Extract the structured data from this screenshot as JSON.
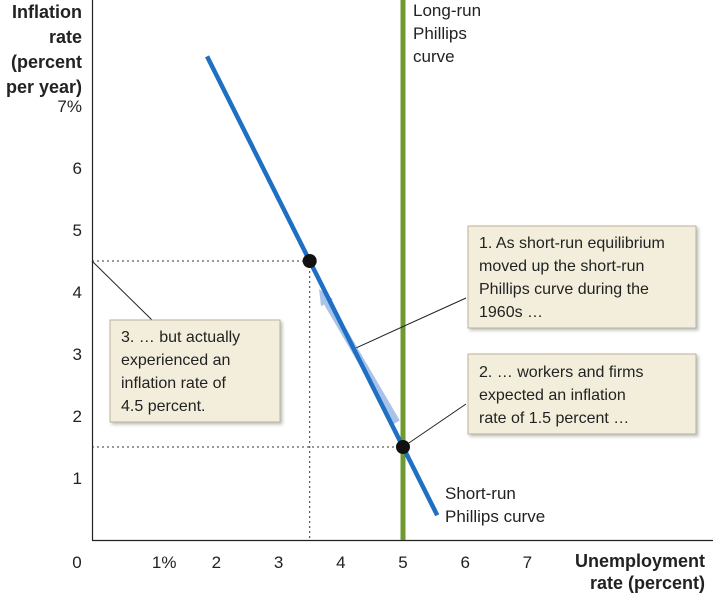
{
  "chart_data": {
    "type": "line",
    "ylabel": [
      "Inflation",
      "rate",
      "(percent",
      "per year)"
    ],
    "xlabel": [
      "Unemployment",
      "rate (percent)"
    ],
    "xlim": [
      0,
      7
    ],
    "ylim": [
      0,
      7
    ],
    "x_ticks": [
      {
        "value": 0,
        "label": "0"
      },
      {
        "value": 1,
        "label": "1%"
      },
      {
        "value": 2,
        "label": "2"
      },
      {
        "value": 3,
        "label": "3"
      },
      {
        "value": 4,
        "label": "4"
      },
      {
        "value": 5,
        "label": "5"
      },
      {
        "value": 6,
        "label": "6"
      },
      {
        "value": 7,
        "label": "7"
      }
    ],
    "y_ticks": [
      {
        "value": 1,
        "label": "1"
      },
      {
        "value": 2,
        "label": "2"
      },
      {
        "value": 3,
        "label": "3"
      },
      {
        "value": 4,
        "label": "4"
      },
      {
        "value": 5,
        "label": "5"
      },
      {
        "value": 6,
        "label": "6"
      },
      {
        "value": 7,
        "label": "7%"
      }
    ],
    "grid": false,
    "series": [
      {
        "name": "Short-run Phillips curve",
        "label_lines": [
          "Short-run",
          "Phillips curve"
        ],
        "color": "#1f6fc2",
        "points": [
          [
            1.85,
            7.8
          ],
          [
            5.55,
            0.4
          ]
        ]
      },
      {
        "name": "Long-run Phillips curve",
        "label_lines": [
          "Long-run",
          "Phillips",
          "curve"
        ],
        "color": "#6f9a2f",
        "x": 5
      }
    ],
    "points": [
      {
        "x": 3.5,
        "y": 4.5
      },
      {
        "x": 5,
        "y": 1.5
      }
    ],
    "movement_arrow": {
      "from": [
        4.9,
        1.9
      ],
      "to": [
        3.65,
        4.05
      ],
      "color": "#a9c3e8"
    },
    "annotations": [
      {
        "id": "note1",
        "lines": [
          "1. As short-run equilibrium",
          "moved up the short-run",
          "Phillips curve during the",
          "1960s …"
        ],
        "pointer_to": [
          4.25,
          3.1
        ]
      },
      {
        "id": "note2",
        "lines": [
          "2. … workers and firms",
          "expected an inflation",
          "rate of 1.5 percent …"
        ],
        "pointer_to": [
          5,
          1.5
        ]
      },
      {
        "id": "note3",
        "lines": [
          "3. … but actually",
          "experienced an",
          "inflation rate of",
          "4.5 percent."
        ],
        "pointer_to": [
          0,
          4.5
        ]
      }
    ],
    "colors": {
      "short_run": "#1f6fc2",
      "long_run": "#6f9a2f",
      "arrow": "#a9c3e8",
      "box_fill": "#f2eedb",
      "box_stroke": "#b9b39d",
      "dot": "#111111"
    }
  }
}
